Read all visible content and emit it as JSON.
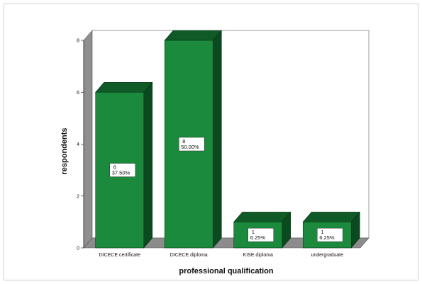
{
  "chart_data": {
    "type": "bar",
    "title": "",
    "xlabel": "professional qualification",
    "ylabel": "respondents",
    "categories": [
      "DICECE certificate",
      "DICECE diploma",
      "KISE diploma",
      "undergraduate"
    ],
    "values": [
      6,
      8,
      1,
      1
    ],
    "data_labels": [
      {
        "count": "6",
        "percent": "37.50%"
      },
      {
        "count": "8",
        "percent": "50.00%"
      },
      {
        "count": "1",
        "percent": "6.25%"
      },
      {
        "count": "1",
        "percent": "6.25%"
      }
    ],
    "yticks": [
      "0",
      "2",
      "4",
      "6",
      "8"
    ],
    "ylim": [
      0,
      8
    ],
    "grid": false,
    "legend": "none",
    "style": "3d",
    "colors": {
      "bar_front": "#1b8a3c",
      "bar_top": "#0f5a26",
      "bar_side": "#0b4a1e",
      "floor": "#8c8c8c",
      "back_wall": "#ffffff",
      "side_wall": "#8f8f8f"
    }
  }
}
